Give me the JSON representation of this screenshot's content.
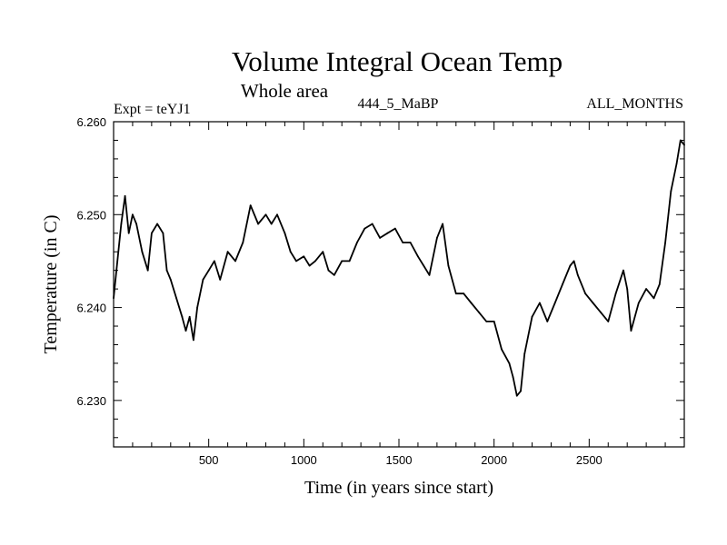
{
  "chart_data": {
    "type": "line",
    "title": "Volume Integral Ocean Temp",
    "subtitle": "Whole area",
    "left_label": "Expt = teYJ1",
    "center_label": "444_5_MaBP",
    "right_label": "ALL_MONTHS",
    "xlabel": "Time (in years since start)",
    "ylabel": "Temperature (in C)",
    "xlim": [
      0,
      3000
    ],
    "ylim": [
      6.225,
      6.26
    ],
    "x_ticks": [
      500,
      1000,
      1500,
      2000,
      2500
    ],
    "x_tick_labels": [
      "500",
      "1000",
      "1500",
      "2000",
      "2500"
    ],
    "y_ticks": [
      6.23,
      6.24,
      6.25,
      6.26
    ],
    "y_tick_labels": [
      "6.230",
      "6.240",
      "6.250",
      "6.260"
    ],
    "grid": false,
    "series": [
      {
        "name": "Volume Integral Ocean Temp",
        "x": [
          0,
          20,
          40,
          60,
          80,
          100,
          120,
          150,
          180,
          200,
          230,
          260,
          280,
          300,
          330,
          360,
          380,
          400,
          420,
          440,
          470,
          500,
          530,
          560,
          600,
          640,
          680,
          720,
          760,
          800,
          830,
          860,
          900,
          930,
          960,
          1000,
          1030,
          1060,
          1100,
          1130,
          1160,
          1200,
          1240,
          1280,
          1320,
          1360,
          1400,
          1440,
          1480,
          1520,
          1560,
          1600,
          1630,
          1660,
          1700,
          1730,
          1760,
          1800,
          1840,
          1880,
          1920,
          1960,
          2000,
          2040,
          2080,
          2100,
          2120,
          2140,
          2160,
          2200,
          2240,
          2280,
          2320,
          2360,
          2400,
          2420,
          2440,
          2480,
          2520,
          2560,
          2600,
          2640,
          2680,
          2700,
          2720,
          2760,
          2800,
          2840,
          2870,
          2900,
          2930,
          2960,
          2980,
          3000
        ],
        "y": [
          6.241,
          6.245,
          6.249,
          6.252,
          6.248,
          6.25,
          6.249,
          6.246,
          6.244,
          6.248,
          6.249,
          6.248,
          6.244,
          6.243,
          6.241,
          6.239,
          6.2375,
          6.239,
          6.2365,
          6.24,
          6.243,
          6.244,
          6.245,
          6.243,
          6.246,
          6.245,
          6.247,
          6.251,
          6.249,
          6.25,
          6.249,
          6.25,
          6.248,
          6.246,
          6.245,
          6.2455,
          6.2445,
          6.245,
          6.246,
          6.244,
          6.2435,
          6.245,
          6.245,
          6.247,
          6.2485,
          6.249,
          6.2475,
          6.248,
          6.2485,
          6.247,
          6.247,
          6.2455,
          6.2445,
          6.2435,
          6.2475,
          6.249,
          6.2445,
          6.2415,
          6.2415,
          6.2405,
          6.2395,
          6.2385,
          6.2385,
          6.2355,
          6.234,
          6.2325,
          6.2305,
          6.231,
          6.235,
          6.239,
          6.2405,
          6.2385,
          6.2405,
          6.2425,
          6.2445,
          6.245,
          6.2435,
          6.2415,
          6.2405,
          6.2395,
          6.2385,
          6.2415,
          6.244,
          6.242,
          6.2375,
          6.2405,
          6.242,
          6.241,
          6.2425,
          6.247,
          6.2525,
          6.2555,
          6.258,
          6.2575
        ]
      }
    ]
  }
}
